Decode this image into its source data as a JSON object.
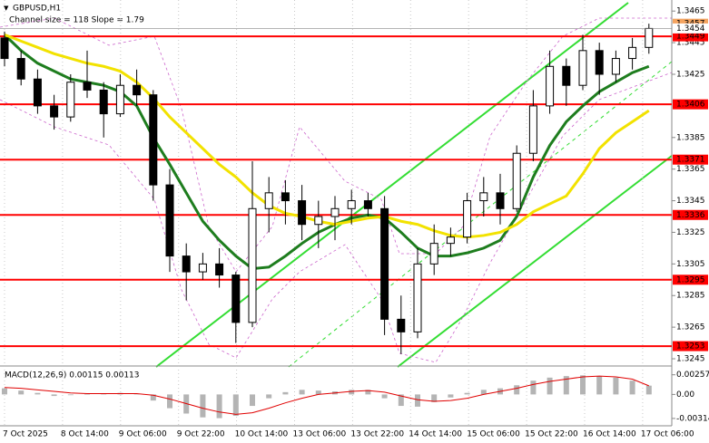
{
  "chart_data": {
    "type": "candlestick",
    "title": "GBPUSD,H1",
    "subtitle": "Channel size = 118 Slope = 1.79",
    "x_labels": [
      "7 Oct 2025",
      "8 Oct 14:00",
      "9 Oct 06:00",
      "9 Oct 22:00",
      "10 Oct 14:00",
      "13 Oct 06:00",
      "13 Oct 22:00",
      "14 Oct 14:00",
      "15 Oct 06:00",
      "15 Oct 22:00",
      "16 Oct 14:00",
      "17 Oct 06:00"
    ],
    "open": [
      1.3448,
      1.3435,
      1.3422,
      1.3405,
      1.3398,
      1.342,
      1.3415,
      1.34,
      1.3418,
      1.3412,
      1.3355,
      1.331,
      1.33,
      1.3305,
      1.3298,
      1.3268,
      1.334,
      1.335,
      1.3345,
      1.333,
      1.3335,
      1.334,
      1.3345,
      1.334,
      1.327,
      1.3262,
      1.3305,
      1.3318,
      1.3322,
      1.3345,
      1.335,
      1.334,
      1.3375,
      1.3405,
      1.343,
      1.3418,
      1.344,
      1.3425,
      1.3435,
      1.3442
    ],
    "high": [
      1.3452,
      1.344,
      1.3428,
      1.3412,
      1.3425,
      1.344,
      1.342,
      1.3425,
      1.3428,
      1.3415,
      1.3365,
      1.3318,
      1.3312,
      1.3315,
      1.33,
      1.337,
      1.336,
      1.3358,
      1.3355,
      1.3345,
      1.3348,
      1.3352,
      1.335,
      1.3348,
      1.3285,
      1.3315,
      1.333,
      1.3328,
      1.335,
      1.336,
      1.3362,
      1.338,
      1.3415,
      1.344,
      1.3435,
      1.345,
      1.3445,
      1.344,
      1.3448,
      1.3457
    ],
    "low": [
      1.343,
      1.3418,
      1.34,
      1.339,
      1.3395,
      1.341,
      1.3385,
      1.3398,
      1.3405,
      1.3345,
      1.33,
      1.3282,
      1.3295,
      1.329,
      1.3255,
      1.3265,
      1.3325,
      1.333,
      1.332,
      1.3315,
      1.332,
      1.333,
      1.3335,
      1.326,
      1.3248,
      1.3258,
      1.3298,
      1.331,
      1.3318,
      1.3335,
      1.333,
      1.3338,
      1.337,
      1.34,
      1.3405,
      1.3415,
      1.3412,
      1.342,
      1.3428,
      1.3438
    ],
    "close": [
      1.3435,
      1.3422,
      1.3405,
      1.3398,
      1.342,
      1.3415,
      1.34,
      1.3418,
      1.3412,
      1.3355,
      1.331,
      1.33,
      1.3305,
      1.3298,
      1.3268,
      1.334,
      1.335,
      1.3345,
      1.333,
      1.3335,
      1.334,
      1.3345,
      1.334,
      1.327,
      1.3262,
      1.3305,
      1.3318,
      1.3322,
      1.3345,
      1.335,
      1.334,
      1.3375,
      1.3405,
      1.343,
      1.3418,
      1.344,
      1.3425,
      1.3435,
      1.3442,
      1.3454
    ],
    "moving_averages": [
      {
        "color": "#1e7d1e",
        "values": [
          1.345,
          1.344,
          1.3432,
          1.3427,
          1.3422,
          1.342,
          1.3418,
          1.3414,
          1.3405,
          1.3385,
          1.3368,
          1.335,
          1.3332,
          1.332,
          1.331,
          1.3302,
          1.3303,
          1.331,
          1.3318,
          1.3325,
          1.333,
          1.3334,
          1.3336,
          1.3334,
          1.3325,
          1.3315,
          1.331,
          1.331,
          1.3312,
          1.3315,
          1.332,
          1.3335,
          1.336,
          1.338,
          1.3395,
          1.3405,
          1.3414,
          1.342,
          1.3426,
          1.343
        ]
      },
      {
        "color": "#f2e200",
        "values": [
          1.345,
          1.3446,
          1.3442,
          1.3438,
          1.3435,
          1.3432,
          1.343,
          1.3427,
          1.342,
          1.341,
          1.3398,
          1.3388,
          1.3378,
          1.3368,
          1.336,
          1.335,
          1.3342,
          1.3337,
          1.3335,
          1.3332,
          1.333,
          1.3332,
          1.3334,
          1.3335,
          1.3332,
          1.333,
          1.3326,
          1.3323,
          1.3322,
          1.3323,
          1.3325,
          1.333,
          1.3338,
          1.3343,
          1.3348,
          1.3362,
          1.3378,
          1.3388,
          1.3395,
          1.3402
        ]
      }
    ],
    "ylim": [
      1.3241,
      1.3472
    ],
    "yticks": [
      1.3465,
      1.3445,
      1.3425,
      1.3385,
      1.3365,
      1.3345,
      1.3325,
      1.3305,
      1.3285,
      1.3265,
      1.3245
    ],
    "levels": [
      1.3449,
      1.3406,
      1.3371,
      1.3336,
      1.3295,
      1.3253
    ],
    "level_color": "#ff0000",
    "top_price": 1.3457,
    "top_price_color": "#f4a460",
    "current_price": 1.3454,
    "macd": {
      "label": "MACD(12,26,9) 0.00115 0.00113",
      "histogram_color": "#b4b4b4",
      "signal_color": "#e00000",
      "histogram": [
        0.0008,
        0.0005,
        0.0002,
        -0.0002,
        -0.0001,
        0.0,
        0.0001,
        0.0002,
        0.0001,
        -0.0008,
        -0.0018,
        -0.0025,
        -0.003,
        -0.0031,
        -0.0028,
        -0.0015,
        -0.0005,
        0.0003,
        0.0006,
        0.0005,
        0.0004,
        0.0006,
        0.0006,
        -0.0005,
        -0.0015,
        -0.0016,
        -0.001,
        -0.0004,
        0.0002,
        0.0006,
        0.0008,
        0.0012,
        0.0018,
        0.0022,
        0.0024,
        0.0025,
        0.0024,
        0.0022,
        0.0018,
        0.00115
      ],
      "signal": [
        0.0009,
        0.0008,
        0.0006,
        0.0004,
        0.0002,
        0.0001,
        0.0001,
        0.0001,
        0.0001,
        -0.0001,
        -0.0006,
        -0.0012,
        -0.0018,
        -0.0023,
        -0.0026,
        -0.0024,
        -0.0018,
        -0.0011,
        -0.0005,
        0.0,
        0.0002,
        0.0004,
        0.0005,
        0.0003,
        -0.0002,
        -0.0007,
        -0.0009,
        -0.0008,
        -0.0005,
        0.0,
        0.0004,
        0.0008,
        0.0013,
        0.0017,
        0.002,
        0.0023,
        0.0024,
        0.0023,
        0.002,
        0.00113
      ],
      "ylim": [
        -0.0041,
        0.0036
      ],
      "yticks": [
        0.00257,
        {
          "value": 0,
          "label": "0.00"
        },
        -0.00314
      ]
    }
  }
}
